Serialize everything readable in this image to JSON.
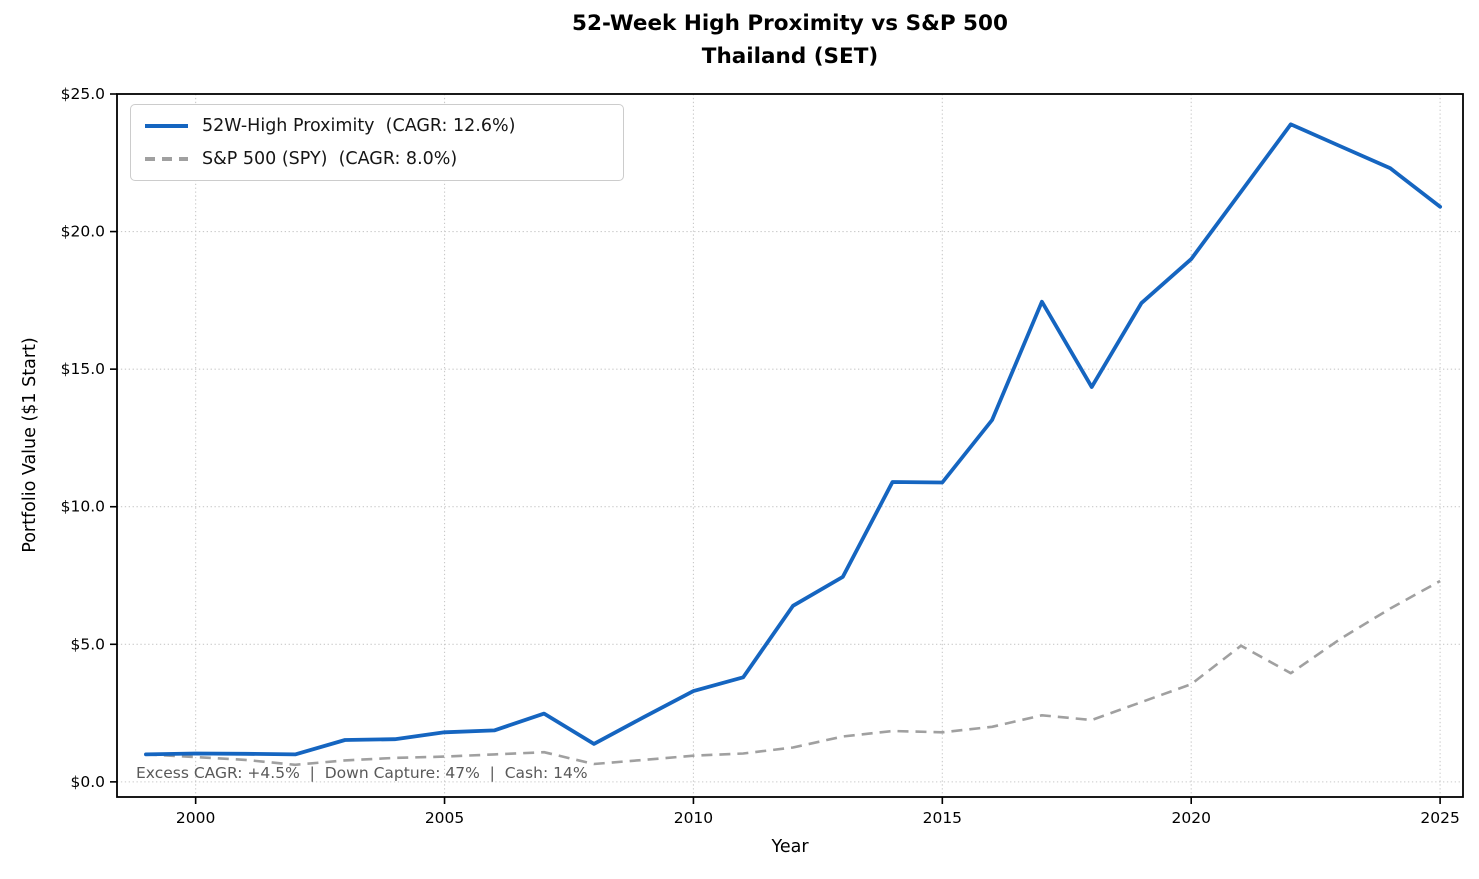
{
  "figure": {
    "title_line1": "52-Week High Proximity vs S&P 500",
    "title_line2": "Thailand (SET)",
    "xlabel": "Year",
    "ylabel": "Portfolio Value ($1 Start)",
    "annotation": "Excess CAGR: +4.5%  |  Down Capture: 47%  |  Cash: 14%"
  },
  "legend": {
    "position": "upper-left",
    "entries": [
      {
        "label": "52W-High Proximity  (CAGR: 12.6%)",
        "style": "solid",
        "color": "#1565c0"
      },
      {
        "label": "S&P 500 (SPY)  (CAGR: 8.0%)",
        "style": "dashed",
        "color": "#a0a0a0"
      }
    ]
  },
  "chart_data": {
    "type": "line",
    "title": "52-Week High Proximity vs S&P 500 — Thailand (SET)",
    "xlabel": "Year",
    "ylabel": "Portfolio Value ($1 Start)",
    "x": [
      1999,
      2000,
      2001,
      2002,
      2003,
      2004,
      2005,
      2006,
      2007,
      2008,
      2009,
      2010,
      2011,
      2012,
      2013,
      2014,
      2015,
      2016,
      2017,
      2018,
      2019,
      2020,
      2021,
      2022,
      2023,
      2024,
      2025
    ],
    "series": [
      {
        "name": "52W-High Proximity",
        "cagr": "12.6%",
        "color": "#1565c0",
        "style": "solid",
        "linewidth": 3.8,
        "values": [
          1.0,
          1.03,
          1.02,
          1.0,
          1.52,
          1.55,
          1.8,
          1.87,
          2.48,
          1.38,
          2.35,
          3.3,
          3.8,
          6.4,
          7.45,
          10.9,
          10.88,
          13.15,
          17.45,
          14.35,
          17.4,
          19.0,
          21.45,
          23.9,
          23.1,
          22.3,
          20.9
        ]
      },
      {
        "name": "S&P 500 (SPY)",
        "cagr": "8.0%",
        "color": "#a0a0a0",
        "style": "dashed",
        "linewidth": 2.6,
        "values": [
          1.0,
          0.9,
          0.8,
          0.62,
          0.78,
          0.87,
          0.92,
          1.0,
          1.08,
          0.65,
          0.8,
          0.95,
          1.03,
          1.25,
          1.65,
          1.85,
          1.8,
          2.0,
          2.42,
          2.25,
          2.9,
          3.55,
          4.95,
          3.95,
          5.2,
          6.3,
          7.3
        ]
      }
    ],
    "xlim": [
      1998.42,
      2025.46
    ],
    "ylim": [
      -0.55,
      25
    ],
    "xticks": {
      "values": [
        2000,
        2005,
        2010,
        2015,
        2020,
        2025
      ],
      "labels": [
        "2000",
        "2005",
        "2010",
        "2015",
        "2020",
        "2025"
      ]
    },
    "yticks": {
      "values": [
        0,
        5,
        10,
        15,
        20,
        25
      ],
      "labels": [
        "$0.0",
        "$5.0",
        "$10.0",
        "$15.0",
        "$20.0",
        "$25.0"
      ]
    },
    "grid": "dotted",
    "legend_position": "upper-left"
  },
  "colors": {
    "background": "#ffffff",
    "grid": "#c9c9c9",
    "spine": "#000000",
    "tick_text": "#000000",
    "annotation_text": "#595959",
    "legend_border": "#cccccc"
  }
}
